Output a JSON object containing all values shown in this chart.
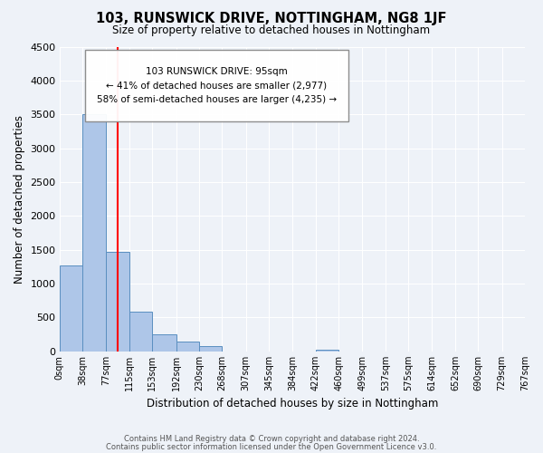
{
  "title": "103, RUNSWICK DRIVE, NOTTINGHAM, NG8 1JF",
  "subtitle": "Size of property relative to detached houses in Nottingham",
  "xlabel": "Distribution of detached houses by size in Nottingham",
  "ylabel": "Number of detached properties",
  "bin_edges": [
    0,
    38,
    77,
    115,
    153,
    192,
    230,
    268,
    307,
    345,
    384,
    422,
    460,
    499,
    537,
    575,
    614,
    652,
    690,
    729,
    767
  ],
  "bin_labels": [
    "0sqm",
    "38sqm",
    "77sqm",
    "115sqm",
    "153sqm",
    "192sqm",
    "230sqm",
    "268sqm",
    "307sqm",
    "345sqm",
    "384sqm",
    "422sqm",
    "460sqm",
    "499sqm",
    "537sqm",
    "575sqm",
    "614sqm",
    "652sqm",
    "690sqm",
    "729sqm",
    "767sqm"
  ],
  "counts": [
    1270,
    3500,
    1460,
    580,
    245,
    135,
    75,
    0,
    0,
    0,
    0,
    25,
    0,
    0,
    0,
    0,
    0,
    0,
    0,
    0
  ],
  "bar_color": "#aec6e8",
  "bar_edge_color": "#5a8fc0",
  "property_line_x": 95,
  "property_line_color": "red",
  "ylim": [
    0,
    4500
  ],
  "annotation_line1": "103 RUNSWICK DRIVE: 95sqm",
  "annotation_line2": "← 41% of detached houses are smaller (2,977)",
  "annotation_line3": "58% of semi-detached houses are larger (4,235) →",
  "footer_line1": "Contains HM Land Registry data © Crown copyright and database right 2024.",
  "footer_line2": "Contains public sector information licensed under the Open Government Licence v3.0.",
  "background_color": "#eef2f8",
  "grid_color": "white"
}
